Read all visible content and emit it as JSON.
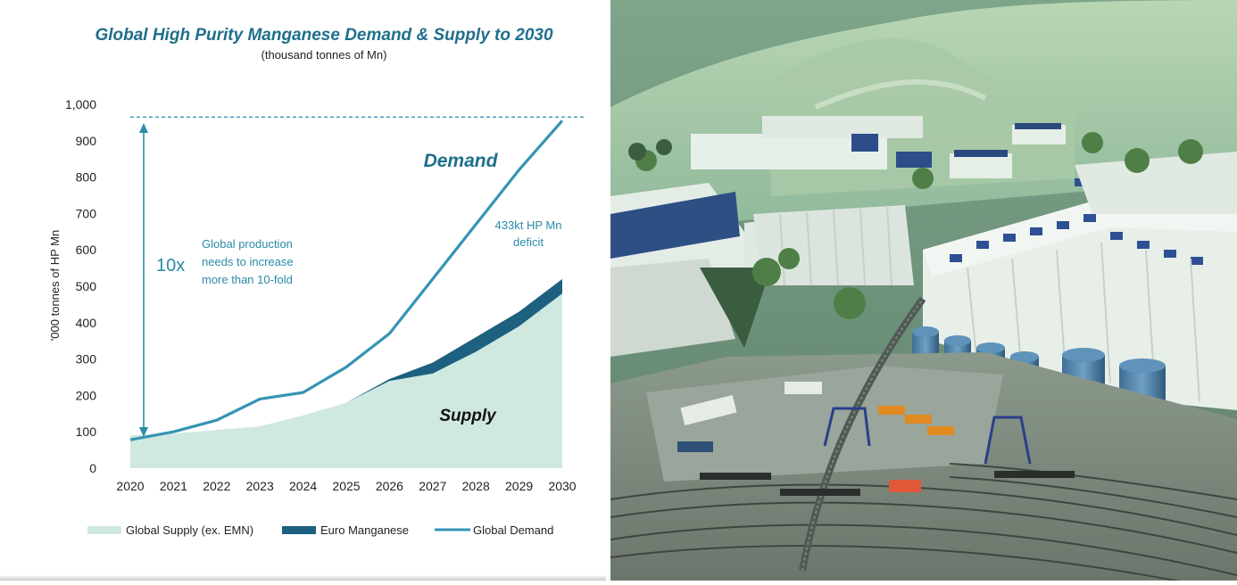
{
  "chart_data": {
    "type": "area",
    "title": "Global High Purity Manganese Demand & Supply to 2030",
    "subtitle": "(thousand tonnes of Mn)",
    "ylabel": "'000 tonnes of HP Mn",
    "xlabel": "",
    "ylim": [
      0,
      1000
    ],
    "yticks": [
      0,
      100,
      200,
      300,
      400,
      500,
      600,
      700,
      800,
      900,
      1000
    ],
    "ytick_labels": [
      "0",
      "100",
      "200",
      "300",
      "400",
      "500",
      "600",
      "700",
      "800",
      "900",
      "1,000"
    ],
    "categories": [
      "2020",
      "2021",
      "2022",
      "2023",
      "2024",
      "2025",
      "2026",
      "2027",
      "2028",
      "2029",
      "2030"
    ],
    "grid": false,
    "legend_position": "bottom",
    "series": [
      {
        "name": "Global Supply (ex. EMN)",
        "kind": "area",
        "color": "#cfe8e0",
        "values": [
          90,
          95,
          105,
          115,
          145,
          180,
          240,
          260,
          320,
          390,
          480
        ]
      },
      {
        "name": "Euro Manganese",
        "kind": "stacked-area",
        "color": "#1d607f",
        "values": [
          0,
          0,
          0,
          0,
          0,
          0,
          5,
          30,
          40,
          40,
          40
        ]
      },
      {
        "name": "Global Demand",
        "kind": "line",
        "color": "#3694b4",
        "values": [
          78,
          100,
          132,
          190,
          208,
          278,
          370,
          520,
          670,
          820,
          955
        ]
      }
    ],
    "reference_line": {
      "value": 965,
      "style": "dashed",
      "color": "#2a8ca8"
    },
    "annotations": {
      "demand_label": "Demand",
      "supply_label": "Supply",
      "multiplier": "10x",
      "growth_note": [
        "Global production",
        "needs to increase",
        "more than 10-fold"
      ],
      "deficit_note": [
        "433kt HP Mn",
        "deficit"
      ]
    },
    "colors": {
      "title": "#1f6f8b",
      "accent": "#2a8ca8",
      "axis_text": "#222222"
    }
  }
}
